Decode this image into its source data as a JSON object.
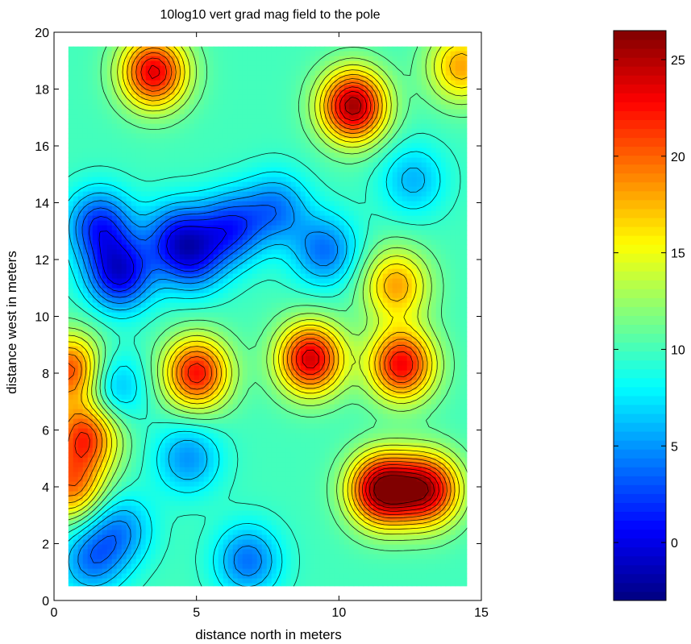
{
  "chart_data": {
    "type": "heatmap",
    "title": "10log10 vert grad mag field to the pole",
    "xlabel": "distance north in meters",
    "ylabel": "distance west in meters",
    "xlim": [
      0,
      15
    ],
    "ylim": [
      0,
      20
    ],
    "x_ticks": [
      "0",
      "5",
      "10",
      "15"
    ],
    "y_ticks": [
      "0",
      "2",
      "4",
      "6",
      "8",
      "10",
      "12",
      "14",
      "16",
      "18",
      "20"
    ],
    "data_extent": {
      "x": [
        0.5,
        14.5
      ],
      "y": [
        0.5,
        19.5
      ]
    },
    "grid": false,
    "colormap": "jet",
    "contour_lines": true,
    "colorbar": {
      "range": [
        -3,
        26.5
      ],
      "ticks": [
        "0",
        "5",
        "10",
        "15",
        "20",
        "25"
      ],
      "tick_values": [
        0,
        5,
        10,
        15,
        20,
        25
      ]
    },
    "background_level": 10,
    "features": [
      {
        "x": 3.5,
        "y": 18.6,
        "value": 23.5
      },
      {
        "x": 10.5,
        "y": 17.4,
        "value": 25.5
      },
      {
        "x": 14.3,
        "y": 18.8,
        "value": 18
      },
      {
        "x": 5.0,
        "y": 8.0,
        "value": 22.5
      },
      {
        "x": 9.0,
        "y": 8.5,
        "value": 24
      },
      {
        "x": 12.2,
        "y": 8.3,
        "value": 23
      },
      {
        "x": 11.5,
        "y": 3.9,
        "value": 26
      },
      {
        "x": 13.1,
        "y": 3.9,
        "value": 24
      },
      {
        "x": 1.1,
        "y": 5.8,
        "value": 21
      },
      {
        "x": 0.6,
        "y": 8.1,
        "value": 21
      },
      {
        "x": 0.6,
        "y": 4.0,
        "value": 19
      },
      {
        "x": 12.0,
        "y": 11.1,
        "value": 18
      },
      {
        "x": 2.3,
        "y": 11.5,
        "value": 0
      },
      {
        "x": 1.6,
        "y": 13.2,
        "value": 2
      },
      {
        "x": 4.3,
        "y": 12.8,
        "value": 3
      },
      {
        "x": 6.2,
        "y": 13.1,
        "value": 2.5
      },
      {
        "x": 7.8,
        "y": 13.8,
        "value": 4.5
      },
      {
        "x": 9.5,
        "y": 12.3,
        "value": 4
      },
      {
        "x": 4.9,
        "y": 12.0,
        "value": 4
      },
      {
        "x": 2.0,
        "y": 7.5,
        "value": 5
      },
      {
        "x": 4.7,
        "y": 5.0,
        "value": 5
      },
      {
        "x": 6.8,
        "y": 1.4,
        "value": 4
      },
      {
        "x": 1.3,
        "y": 1.4,
        "value": 4.5
      },
      {
        "x": 2.3,
        "y": 2.5,
        "value": 5
      },
      {
        "x": 12.6,
        "y": 14.8,
        "value": 6
      }
    ]
  }
}
